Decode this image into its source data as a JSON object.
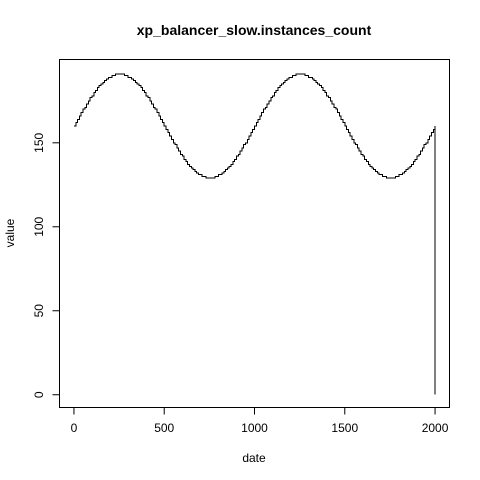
{
  "chart_data": {
    "type": "line",
    "title": "xp_balancer_slow.instances_count",
    "xlabel": "date",
    "ylabel": "value",
    "xlim": [
      -80,
      2080
    ],
    "ylim": [
      -7.6,
      199.6
    ],
    "x_ticks": [
      0,
      500,
      1000,
      1500,
      2000
    ],
    "y_ticks": [
      0,
      50,
      100,
      150
    ],
    "grid": false,
    "step": true,
    "series": [
      {
        "values": {
          "x_start": 0,
          "x_end": 2000,
          "x_step": 10,
          "baseline": 160,
          "amplitude": 31,
          "period": 1000,
          "min_value": 128,
          "max_value": 191,
          "final_drop_to": 0
        }
      }
    ]
  }
}
